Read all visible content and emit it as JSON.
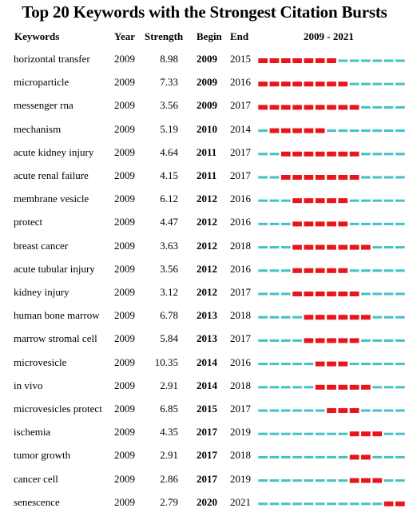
{
  "chart_data": {
    "type": "table",
    "title": "Top 20 Keywords with the Strongest Citation Bursts",
    "headers": {
      "keyword": "Keywords",
      "year": "Year",
      "strength": "Strength",
      "begin": "Begin",
      "end": "End",
      "range": "2009 - 2021"
    },
    "timeline": {
      "start": 2009,
      "end": 2021
    },
    "colors": {
      "burst": "#e8151b",
      "base": "#43c1c7"
    },
    "rows": [
      {
        "keyword": "horizontal transfer",
        "year": "2009",
        "strength": "8.98",
        "begin": "2009",
        "end": "2015"
      },
      {
        "keyword": "microparticle",
        "year": "2009",
        "strength": "7.33",
        "begin": "2009",
        "end": "2016"
      },
      {
        "keyword": "messenger rna",
        "year": "2009",
        "strength": "3.56",
        "begin": "2009",
        "end": "2017"
      },
      {
        "keyword": "mechanism",
        "year": "2009",
        "strength": "5.19",
        "begin": "2010",
        "end": "2014"
      },
      {
        "keyword": "acute kidney injury",
        "year": "2009",
        "strength": "4.64",
        "begin": "2011",
        "end": "2017"
      },
      {
        "keyword": "acute renal failure",
        "year": "2009",
        "strength": "4.15",
        "begin": "2011",
        "end": "2017"
      },
      {
        "keyword": "membrane vesicle",
        "year": "2009",
        "strength": "6.12",
        "begin": "2012",
        "end": "2016"
      },
      {
        "keyword": "protect",
        "year": "2009",
        "strength": "4.47",
        "begin": "2012",
        "end": "2016"
      },
      {
        "keyword": "breast cancer",
        "year": "2009",
        "strength": "3.63",
        "begin": "2012",
        "end": "2018"
      },
      {
        "keyword": "acute tubular injury",
        "year": "2009",
        "strength": "3.56",
        "begin": "2012",
        "end": "2016"
      },
      {
        "keyword": "kidney injury",
        "year": "2009",
        "strength": "3.12",
        "begin": "2012",
        "end": "2017"
      },
      {
        "keyword": "human bone marrow",
        "year": "2009",
        "strength": "6.78",
        "begin": "2013",
        "end": "2018"
      },
      {
        "keyword": "marrow stromal cell",
        "year": "2009",
        "strength": "5.84",
        "begin": "2013",
        "end": "2017"
      },
      {
        "keyword": "microvesicle",
        "year": "2009",
        "strength": "10.35",
        "begin": "2014",
        "end": "2016"
      },
      {
        "keyword": "in vivo",
        "year": "2009",
        "strength": "2.91",
        "begin": "2014",
        "end": "2018"
      },
      {
        "keyword": "microvesicles protect",
        "year": "2009",
        "strength": "6.85",
        "begin": "2015",
        "end": "2017"
      },
      {
        "keyword": "ischemia",
        "year": "2009",
        "strength": "4.35",
        "begin": "2017",
        "end": "2019"
      },
      {
        "keyword": "tumor growth",
        "year": "2009",
        "strength": "2.91",
        "begin": "2017",
        "end": "2018"
      },
      {
        "keyword": "cancer cell",
        "year": "2009",
        "strength": "2.86",
        "begin": "2017",
        "end": "2019"
      },
      {
        "keyword": "senescence",
        "year": "2009",
        "strength": "2.79",
        "begin": "2020",
        "end": "2021"
      }
    ]
  }
}
